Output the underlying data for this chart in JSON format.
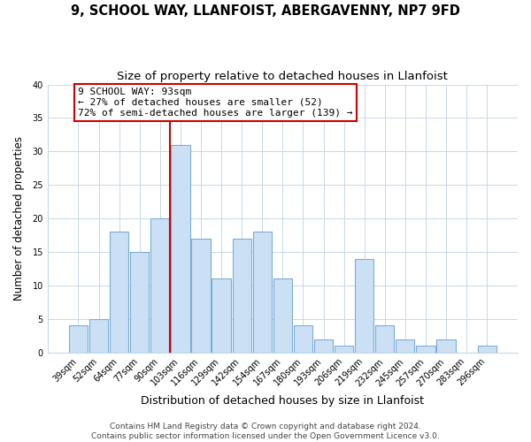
{
  "title": "9, SCHOOL WAY, LLANFOIST, ABERGAVENNY, NP7 9FD",
  "subtitle": "Size of property relative to detached houses in Llanfoist",
  "xlabel": "Distribution of detached houses by size in Llanfoist",
  "ylabel": "Number of detached properties",
  "bar_labels": [
    "39sqm",
    "52sqm",
    "64sqm",
    "77sqm",
    "90sqm",
    "103sqm",
    "116sqm",
    "129sqm",
    "142sqm",
    "154sqm",
    "167sqm",
    "180sqm",
    "193sqm",
    "206sqm",
    "219sqm",
    "232sqm",
    "245sqm",
    "257sqm",
    "270sqm",
    "283sqm",
    "296sqm"
  ],
  "bar_values": [
    4,
    5,
    18,
    15,
    20,
    31,
    17,
    11,
    17,
    18,
    11,
    4,
    2,
    1,
    14,
    4,
    2,
    1,
    2,
    0,
    1
  ],
  "bar_color": "#cce0f5",
  "bar_edgecolor": "#7aaed6",
  "vline_x": 4.5,
  "vline_color": "#cc0000",
  "annotation_title": "9 SCHOOL WAY: 93sqm",
  "annotation_line1": "← 27% of detached houses are smaller (52)",
  "annotation_line2": "72% of semi-detached houses are larger (139) →",
  "annotation_box_facecolor": "#ffffff",
  "annotation_box_edgecolor": "#cc0000",
  "ylim": [
    0,
    40
  ],
  "yticks": [
    0,
    5,
    10,
    15,
    20,
    25,
    30,
    35,
    40
  ],
  "footer_line1": "Contains HM Land Registry data © Crown copyright and database right 2024.",
  "footer_line2": "Contains public sector information licensed under the Open Government Licence v3.0.",
  "bg_color": "#ffffff",
  "grid_color": "#c8d8e8",
  "title_fontsize": 10.5,
  "subtitle_fontsize": 9.5,
  "xlabel_fontsize": 9,
  "ylabel_fontsize": 8.5,
  "tick_fontsize": 7,
  "footer_fontsize": 6.5,
  "annotation_fontsize": 8
}
